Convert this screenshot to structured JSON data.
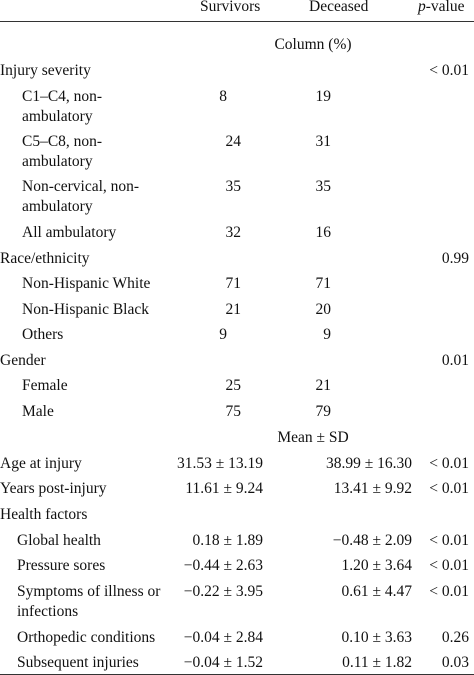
{
  "header": {
    "col_survivors": "Survivors",
    "col_deceased": "Deceased",
    "col_pvalue_p": "p",
    "col_pvalue_rest": "-value"
  },
  "sections": {
    "column_pct": "Column (%)",
    "mean_sd": "Mean ± SD"
  },
  "rows": [
    {
      "label": "Injury severity",
      "survivors": "",
      "deceased": "",
      "p": "< 0.01"
    },
    {
      "label": "C1–C4, non-ambulatory",
      "label1": "C1–C4, non-",
      "label2": "ambulatory",
      "survivors": "8",
      "deceased": "19",
      "p": ""
    },
    {
      "label": "C5–C8, non-ambulatory",
      "label1": "C5–C8, non-",
      "label2": "ambulatory",
      "survivors": "24",
      "deceased": "31",
      "p": ""
    },
    {
      "label": "Non-cervical, non-ambulatory",
      "label1": "Non-cervical, non-",
      "label2": "ambulatory",
      "survivors": "35",
      "deceased": "35",
      "p": ""
    },
    {
      "label": "All ambulatory",
      "survivors": "32",
      "deceased": "16",
      "p": ""
    },
    {
      "label": "Race/ethnicity",
      "survivors": "",
      "deceased": "",
      "p": "0.99"
    },
    {
      "label": "Non-Hispanic White",
      "survivors": "71",
      "deceased": "71",
      "p": ""
    },
    {
      "label": "Non-Hispanic Black",
      "survivors": "21",
      "deceased": "20",
      "p": ""
    },
    {
      "label": "Others",
      "survivors": "9",
      "deceased": "9",
      "p": ""
    },
    {
      "label": "Gender",
      "survivors": "",
      "deceased": "",
      "p": "0.01"
    },
    {
      "label": "Female",
      "survivors": "25",
      "deceased": "21",
      "p": ""
    },
    {
      "label": "Male",
      "survivors": "75",
      "deceased": "79",
      "p": ""
    },
    {
      "label": "Age at injury",
      "survivors": "31.53 ± 13.19",
      "deceased": "38.99 ± 16.30",
      "p": "< 0.01"
    },
    {
      "label": "Years post-injury",
      "survivors": "11.61 ± 9.24",
      "deceased": "13.41 ± 9.92",
      "p": "< 0.01"
    },
    {
      "label": "Health factors",
      "survivors": "",
      "deceased": "",
      "p": ""
    },
    {
      "label": "Global health",
      "survivors": "0.18 ± 1.89",
      "deceased": "−0.48 ± 2.09",
      "p": "< 0.01"
    },
    {
      "label": "Pressure sores",
      "survivors": "−0.44 ± 2.63",
      "deceased": "1.20 ± 3.64",
      "p": "< 0.01"
    },
    {
      "label": "Symptoms of illness or infections",
      "label1": "Symptoms of illness or",
      "label2": "infections",
      "survivors": "−0.22 ± 3.95",
      "deceased": "0.61 ± 4.47",
      "p": "< 0.01"
    },
    {
      "label": "Orthopedic conditions",
      "survivors": "−0.04 ± 2.84",
      "deceased": "0.10 ± 3.63",
      "p": "0.26"
    },
    {
      "label": "Subsequent injuries",
      "survivors": "−0.04 ± 1.52",
      "deceased": "0.11 ± 1.82",
      "p": "0.03"
    }
  ]
}
